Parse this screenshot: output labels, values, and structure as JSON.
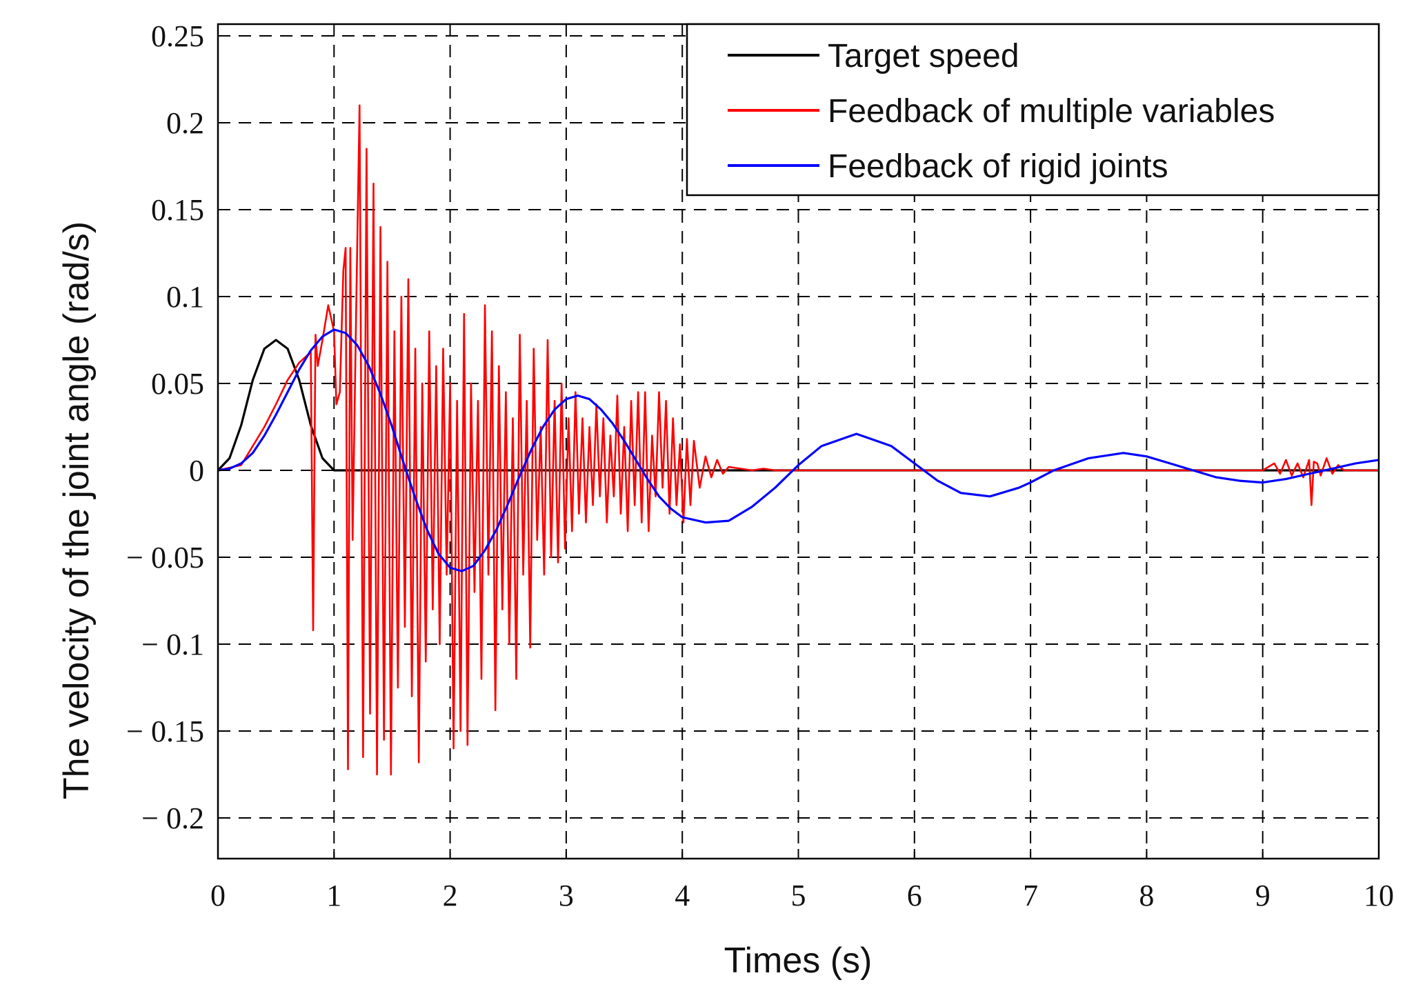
{
  "chart_data": {
    "type": "line",
    "title": "",
    "xlabel": "Times (s)",
    "ylabel": "The velocity of the joint angle (rad/s)",
    "xlim": [
      0,
      10
    ],
    "ylim": [
      -0.225,
      0.26
    ],
    "grid": true,
    "legend_position": "top-right",
    "x_ticks": [
      0,
      1,
      2,
      3,
      4,
      5,
      6,
      7,
      8,
      9,
      10
    ],
    "x_tick_labels": [
      "0",
      "1",
      "2",
      "3",
      "4",
      "5",
      "6",
      "7",
      "8",
      "9",
      "10"
    ],
    "y_ticks": [
      0.25,
      0.2,
      0.15,
      0.1,
      0.05,
      0,
      -0.05,
      -0.1,
      -0.15,
      -0.2
    ],
    "y_tick_labels": [
      "0.25",
      "0.2",
      "0.15",
      "0.1",
      "0.05",
      "0",
      "− 0.05",
      "− 0.1",
      "− 0.15",
      "− 0.2"
    ],
    "series": [
      {
        "name": "Target speed",
        "color": "#000000",
        "x": [
          0,
          0.1,
          0.2,
          0.3,
          0.4,
          0.5,
          0.6,
          0.7,
          0.8,
          0.9,
          1.0,
          1.5,
          10
        ],
        "y": [
          0,
          0.007,
          0.026,
          0.052,
          0.07,
          0.075,
          0.07,
          0.052,
          0.026,
          0.007,
          0,
          0,
          0
        ]
      },
      {
        "name": "Feedback of multiple variables",
        "color": "#ff0000",
        "x": [
          0,
          0.2,
          0.4,
          0.5,
          0.6,
          0.7,
          0.8,
          0.82,
          0.84,
          0.86,
          0.9,
          0.95,
          1.0,
          1.02,
          1.05,
          1.08,
          1.1,
          1.12,
          1.14,
          1.16,
          1.19,
          1.22,
          1.25,
          1.28,
          1.31,
          1.34,
          1.37,
          1.4,
          1.43,
          1.46,
          1.49,
          1.52,
          1.55,
          1.58,
          1.61,
          1.64,
          1.67,
          1.7,
          1.73,
          1.76,
          1.79,
          1.82,
          1.85,
          1.88,
          1.91,
          1.94,
          1.97,
          2.0,
          2.03,
          2.06,
          2.09,
          2.12,
          2.15,
          2.18,
          2.21,
          2.24,
          2.27,
          2.3,
          2.33,
          2.36,
          2.39,
          2.42,
          2.45,
          2.48,
          2.51,
          2.54,
          2.57,
          2.6,
          2.63,
          2.66,
          2.69,
          2.72,
          2.75,
          2.78,
          2.81,
          2.84,
          2.87,
          2.9,
          2.93,
          2.96,
          2.99,
          3.02,
          3.05,
          3.08,
          3.11,
          3.14,
          3.17,
          3.2,
          3.23,
          3.26,
          3.29,
          3.32,
          3.35,
          3.38,
          3.41,
          3.44,
          3.47,
          3.5,
          3.53,
          3.56,
          3.59,
          3.62,
          3.65,
          3.68,
          3.71,
          3.74,
          3.77,
          3.8,
          3.83,
          3.86,
          3.89,
          3.92,
          3.95,
          3.98,
          4.01,
          4.04,
          4.07,
          4.1,
          4.15,
          4.2,
          4.25,
          4.3,
          4.35,
          4.4,
          4.5,
          4.6,
          4.7,
          4.8,
          5.0,
          6.0,
          7.0,
          8.0,
          9.0,
          9.1,
          9.15,
          9.2,
          9.25,
          9.3,
          9.35,
          9.4,
          9.42,
          9.44,
          9.47,
          9.5,
          9.55,
          9.6,
          9.65,
          9.7,
          10.0
        ],
        "y": [
          0,
          0.003,
          0.025,
          0.038,
          0.052,
          0.062,
          0.068,
          -0.092,
          0.078,
          0.06,
          0.075,
          0.095,
          0.08,
          0.038,
          0.045,
          0.115,
          0.128,
          -0.172,
          0.128,
          -0.04,
          0.09,
          0.21,
          -0.165,
          0.185,
          -0.14,
          0.165,
          -0.175,
          0.14,
          -0.155,
          0.12,
          -0.175,
          0.08,
          -0.125,
          0.1,
          -0.09,
          0.11,
          -0.13,
          0.07,
          -0.168,
          0.05,
          -0.11,
          0.08,
          -0.08,
          0.06,
          -0.1,
          0.07,
          -0.06,
          0.05,
          -0.16,
          0.04,
          -0.15,
          0.09,
          -0.158,
          0.05,
          -0.07,
          0.04,
          -0.12,
          0.095,
          -0.06,
          0.08,
          -0.138,
          0.06,
          -0.08,
          0.045,
          -0.1,
          0.03,
          -0.12,
          0.078,
          -0.06,
          0.04,
          -0.102,
          0.07,
          -0.04,
          0.025,
          -0.06,
          0.075,
          -0.05,
          0.04,
          -0.053,
          0.05,
          -0.045,
          0.03,
          -0.035,
          0.045,
          -0.025,
          0.03,
          -0.03,
          0.025,
          -0.02,
          0.038,
          -0.015,
          0.03,
          -0.03,
          0.02,
          -0.015,
          0.043,
          -0.025,
          0.025,
          -0.035,
          0.04,
          -0.02,
          0.045,
          -0.03,
          0.045,
          -0.035,
          0.02,
          -0.015,
          0.045,
          -0.01,
          0.04,
          -0.025,
          0.03,
          -0.02,
          0.015,
          -0.03,
          0.018,
          -0.02,
          0.017,
          -0.01,
          0.008,
          -0.004,
          0.006,
          -0.002,
          0.002,
          0.001,
          0,
          0.001,
          0,
          0,
          0,
          0,
          0,
          0,
          0.004,
          -0.002,
          0.006,
          -0.003,
          0.004,
          -0.004,
          0.006,
          -0.02,
          0.005,
          0.004,
          -0.003,
          0.007,
          -0.002,
          0.003,
          0,
          0
        ]
      },
      {
        "name": "Feedback of rigid joints",
        "color": "#0000ff",
        "x": [
          0,
          0.1,
          0.2,
          0.3,
          0.4,
          0.5,
          0.6,
          0.7,
          0.8,
          0.9,
          1.0,
          1.1,
          1.2,
          1.3,
          1.4,
          1.5,
          1.6,
          1.7,
          1.8,
          1.9,
          2.0,
          2.1,
          2.2,
          2.3,
          2.4,
          2.5,
          2.6,
          2.7,
          2.8,
          2.9,
          3.0,
          3.1,
          3.2,
          3.3,
          3.4,
          3.5,
          3.6,
          3.7,
          3.8,
          3.9,
          4.0,
          4.2,
          4.4,
          4.6,
          4.8,
          5.0,
          5.2,
          5.5,
          5.8,
          6.0,
          6.2,
          6.4,
          6.65,
          6.9,
          7.0,
          7.2,
          7.5,
          7.8,
          8.0,
          8.2,
          8.4,
          8.6,
          8.8,
          9.0,
          9.2,
          9.4,
          9.6,
          9.8,
          10.0
        ],
        "y": [
          0,
          0.001,
          0.004,
          0.01,
          0.02,
          0.032,
          0.045,
          0.058,
          0.069,
          0.077,
          0.081,
          0.079,
          0.072,
          0.06,
          0.044,
          0.025,
          0.004,
          -0.016,
          -0.034,
          -0.048,
          -0.056,
          -0.058,
          -0.055,
          -0.046,
          -0.034,
          -0.019,
          -0.003,
          0.012,
          0.025,
          0.035,
          0.041,
          0.043,
          0.041,
          0.035,
          0.027,
          0.017,
          0.006,
          -0.005,
          -0.015,
          -0.022,
          -0.027,
          -0.03,
          -0.029,
          -0.021,
          -0.01,
          0.003,
          0.014,
          0.021,
          0.014,
          0.004,
          -0.006,
          -0.013,
          -0.015,
          -0.01,
          -0.007,
          0.0,
          0.007,
          0.01,
          0.008,
          0.004,
          0.0,
          -0.004,
          -0.006,
          -0.007,
          -0.005,
          -0.002,
          0.001,
          0.004,
          0.006
        ]
      }
    ]
  }
}
